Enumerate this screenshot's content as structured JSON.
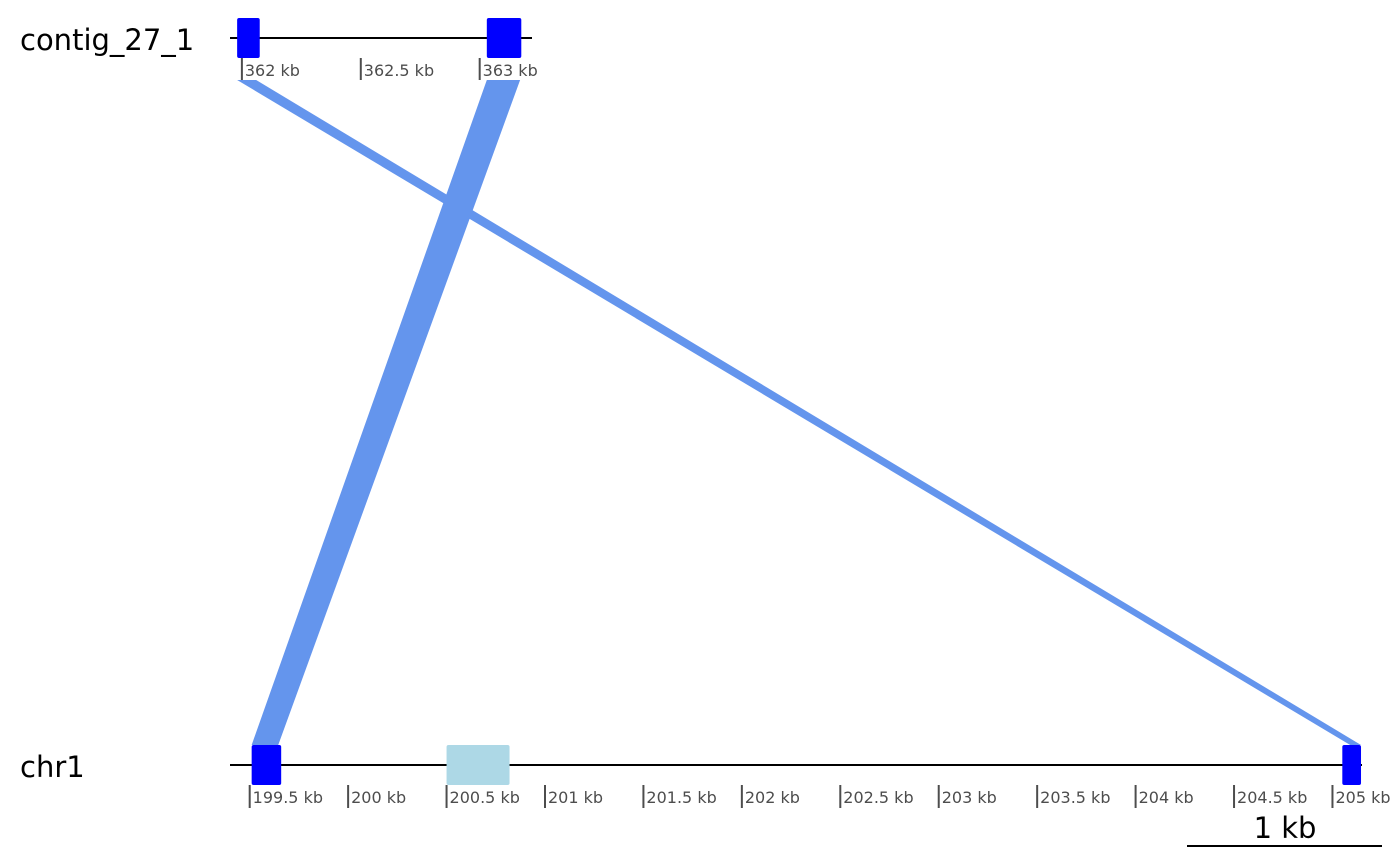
{
  "colors": {
    "gene": "#0000ff",
    "feature": "#add8e6",
    "link": "#6495ed",
    "axis": "#000000",
    "tick": "#4d4d4d"
  },
  "tracks": [
    {
      "id": "contig_27_1",
      "label": "contig_27_1",
      "range_bp": [
        361950,
        363220
      ],
      "ticks": [
        {
          "pos_bp": 362000,
          "label": "362 kb"
        },
        {
          "pos_bp": 362500,
          "label": "362.5 kb"
        },
        {
          "pos_bp": 363000,
          "label": "363 kb"
        }
      ],
      "genes": [
        {
          "start_bp": 361980,
          "end_bp": 362075,
          "type": "gene"
        },
        {
          "start_bp": 363030,
          "end_bp": 363175,
          "type": "gene"
        }
      ]
    },
    {
      "id": "chr1",
      "label": "chr1",
      "range_bp": [
        199400,
        205150
      ],
      "ticks": [
        {
          "pos_bp": 199500,
          "label": "199.5 kb"
        },
        {
          "pos_bp": 200000,
          "label": "200 kb"
        },
        {
          "pos_bp": 200500,
          "label": "200.5 kb"
        },
        {
          "pos_bp": 201000,
          "label": "201 kb"
        },
        {
          "pos_bp": 201500,
          "label": "201.5 kb"
        },
        {
          "pos_bp": 202000,
          "label": "202 kb"
        },
        {
          "pos_bp": 202500,
          "label": "202.5 kb"
        },
        {
          "pos_bp": 203000,
          "label": "203 kb"
        },
        {
          "pos_bp": 203500,
          "label": "203.5 kb"
        },
        {
          "pos_bp": 204000,
          "label": "204 kb"
        },
        {
          "pos_bp": 204500,
          "label": "204.5 kb"
        },
        {
          "pos_bp": 205000,
          "label": "205 kb"
        }
      ],
      "genes": [
        {
          "start_bp": 199510,
          "end_bp": 199660,
          "type": "gene"
        },
        {
          "start_bp": 200500,
          "end_bp": 200820,
          "type": "feature"
        },
        {
          "start_bp": 205050,
          "end_bp": 205145,
          "type": "gene"
        }
      ]
    }
  ],
  "links": [
    {
      "top": [
        361980,
        362060
      ],
      "bottom": [
        205090,
        205145
      ]
    },
    {
      "top": [
        363030,
        363170
      ],
      "bottom": [
        199510,
        199645
      ]
    }
  ],
  "scale_bar": {
    "label": "1 kb",
    "length_bp": 1000
  }
}
